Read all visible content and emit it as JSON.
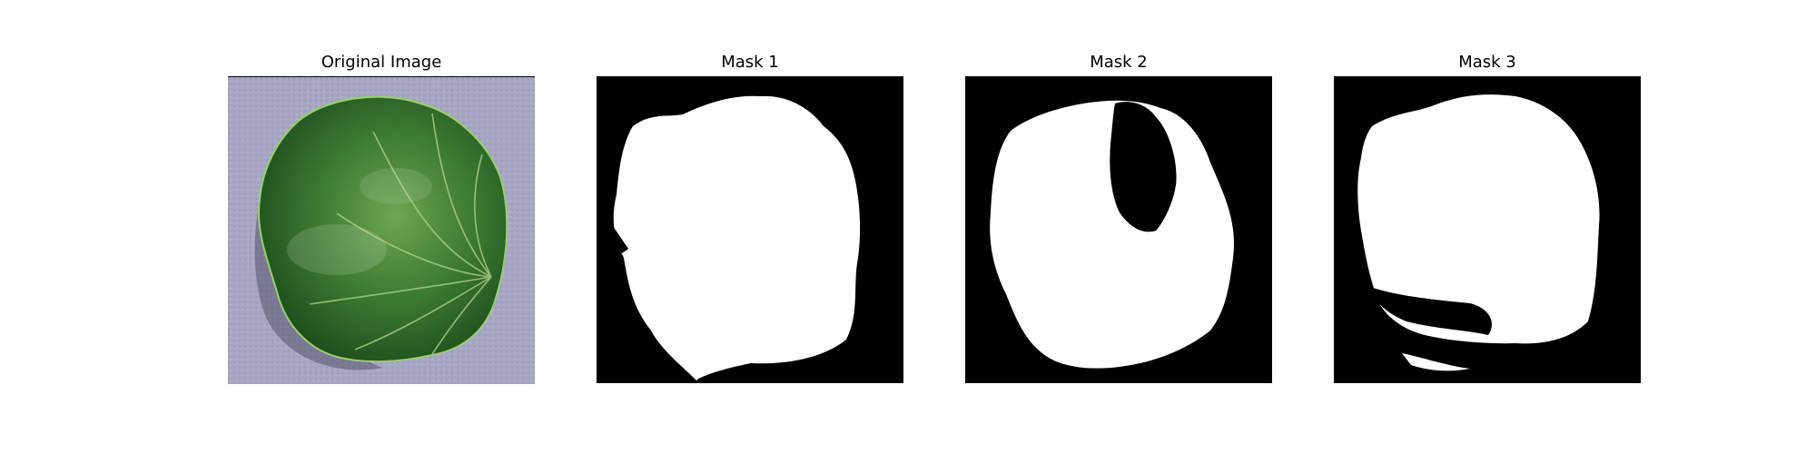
{
  "panels": [
    {
      "title": "Original Image",
      "kind": "photo",
      "subject": "strawberry-leaf"
    },
    {
      "title": "Mask 1",
      "kind": "mask"
    },
    {
      "title": "Mask 2",
      "kind": "mask"
    },
    {
      "title": "Mask 3",
      "kind": "mask"
    }
  ],
  "colors": {
    "background": "#ffffff",
    "mask_bg": "#000000",
    "mask_fg": "#ffffff",
    "leaf_dark": "#1f5a1f",
    "leaf_light": "#4c8f3a",
    "surface": "#a9a8c6"
  }
}
